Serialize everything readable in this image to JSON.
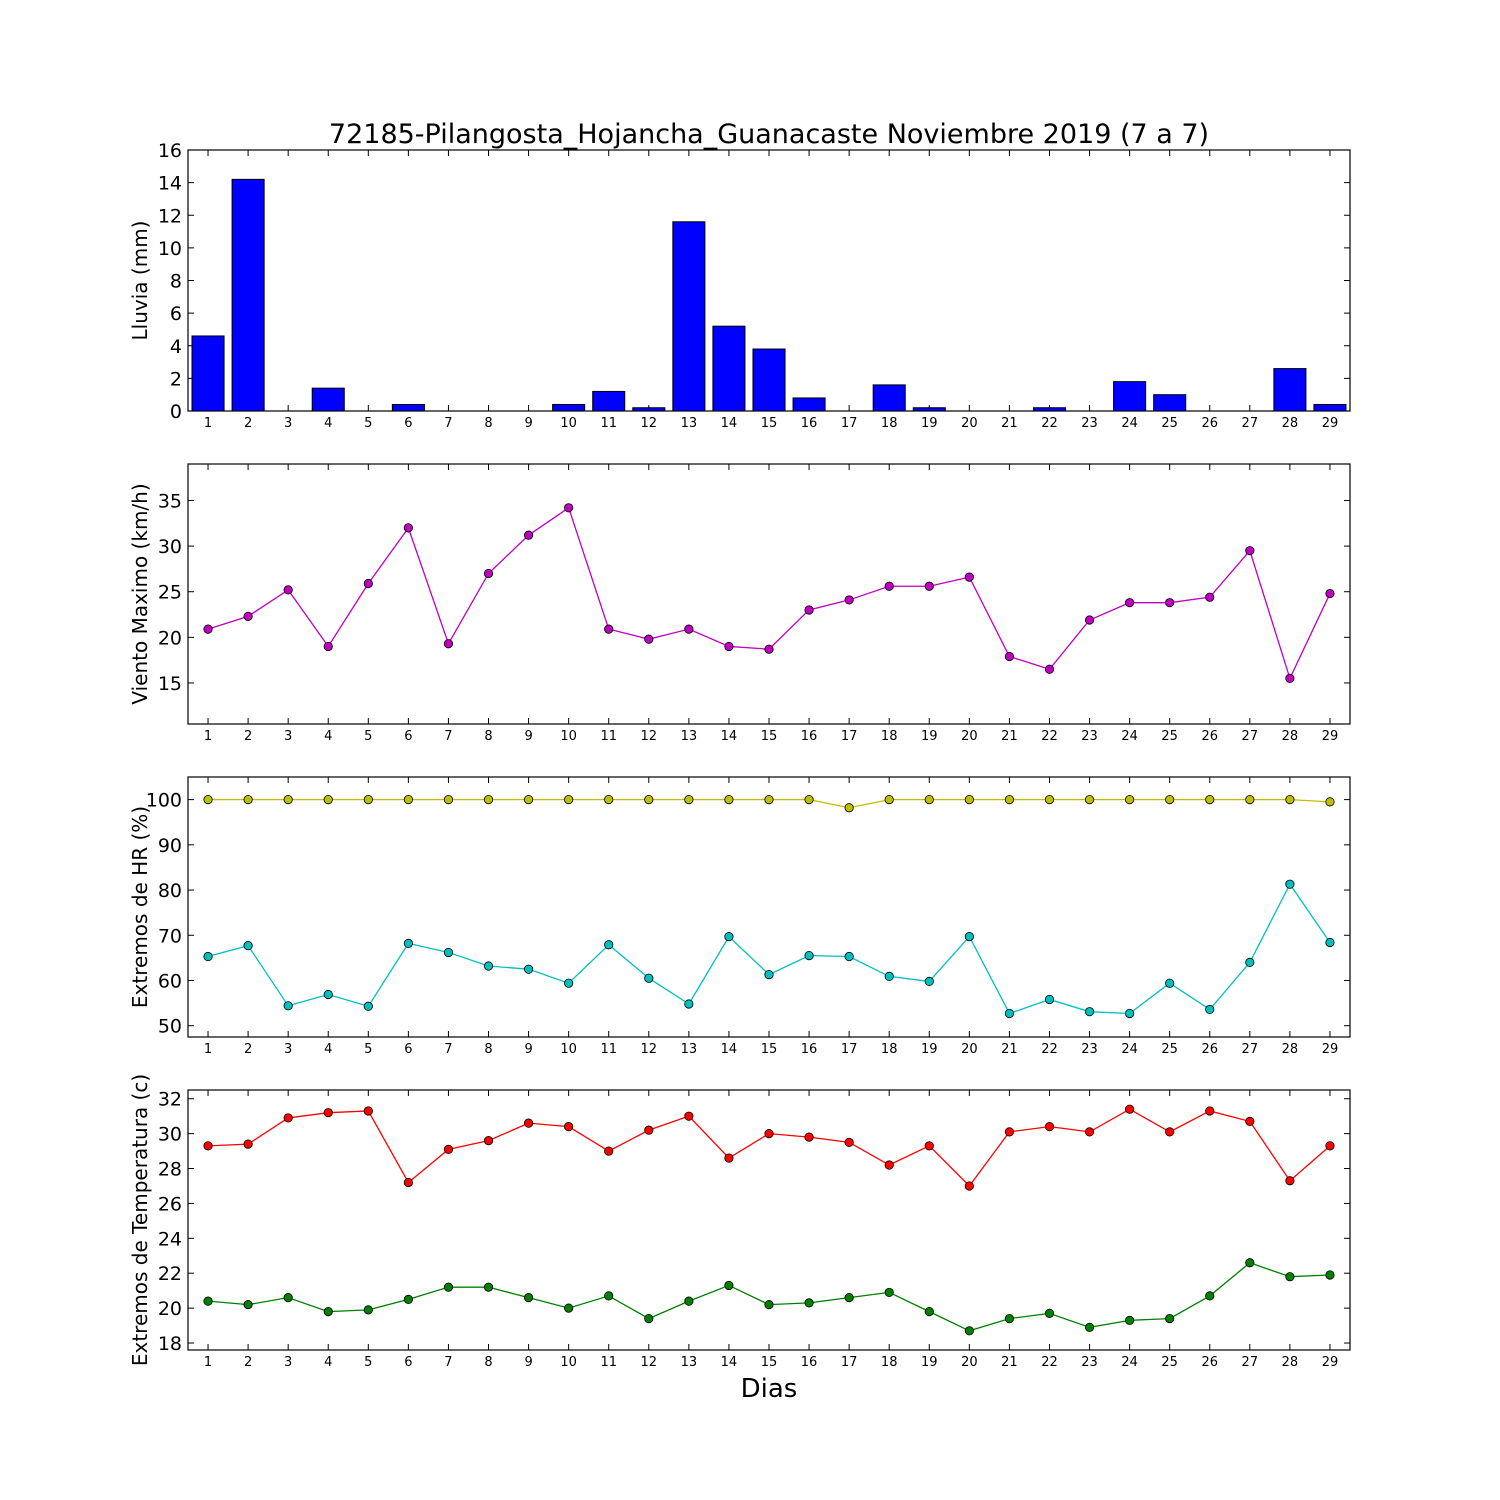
{
  "figure": {
    "title": "72185-Pilangosta_Hojancha_Guanacaste Noviembre 2019  (7 a 7)",
    "xlabel": "Dias"
  },
  "chart_data": [
    {
      "id": "lluvia",
      "type": "bar",
      "ylabel": "Lluvia (mm)",
      "ylim": [
        0,
        16
      ],
      "yticks": [
        0,
        2,
        4,
        6,
        8,
        10,
        12,
        14,
        16
      ],
      "x": [
        1,
        2,
        3,
        4,
        5,
        6,
        7,
        8,
        9,
        10,
        11,
        12,
        13,
        14,
        15,
        16,
        17,
        18,
        19,
        20,
        21,
        22,
        23,
        24,
        25,
        26,
        27,
        28,
        29
      ],
      "series": [
        {
          "color": "#0000ff",
          "values": [
            4.6,
            14.2,
            0,
            1.4,
            0,
            0.4,
            0,
            0,
            0,
            0.4,
            1.2,
            0.2,
            11.6,
            5.2,
            3.8,
            0.8,
            0,
            1.6,
            0.2,
            0,
            0,
            0.2,
            0,
            1.8,
            1.0,
            0,
            0,
            2.6,
            0.4
          ]
        }
      ]
    },
    {
      "id": "viento",
      "type": "line",
      "ylabel": "Viento Maximo (km/h)",
      "ylim": [
        10.5,
        39
      ],
      "yticks": [
        15,
        20,
        25,
        30,
        35
      ],
      "x": [
        1,
        2,
        3,
        4,
        5,
        6,
        7,
        8,
        9,
        10,
        11,
        12,
        13,
        14,
        15,
        16,
        17,
        18,
        19,
        20,
        21,
        22,
        23,
        24,
        25,
        26,
        27,
        28,
        29
      ],
      "series": [
        {
          "color": "#bf00bf",
          "values": [
            20.9,
            22.3,
            25.2,
            19.0,
            25.9,
            32.0,
            19.3,
            27.0,
            31.2,
            34.2,
            20.9,
            19.8,
            20.9,
            19.0,
            18.7,
            23.0,
            24.1,
            25.6,
            25.6,
            26.6,
            17.9,
            16.5,
            21.9,
            23.8,
            23.8,
            24.4,
            29.5,
            15.5,
            24.8
          ]
        }
      ]
    },
    {
      "id": "hr",
      "type": "line",
      "ylabel": "Extremos de HR (%)",
      "ylim": [
        47.5,
        105
      ],
      "yticks": [
        50,
        60,
        70,
        80,
        90,
        100
      ],
      "x": [
        1,
        2,
        3,
        4,
        5,
        6,
        7,
        8,
        9,
        10,
        11,
        12,
        13,
        14,
        15,
        16,
        17,
        18,
        19,
        20,
        21,
        22,
        23,
        24,
        25,
        26,
        27,
        28,
        29
      ],
      "series": [
        {
          "color": "#bfbf00",
          "values": [
            100,
            100,
            100,
            100,
            100,
            100,
            100,
            100,
            100,
            100,
            100,
            100,
            100,
            100,
            100,
            100,
            98.2,
            100,
            100,
            100,
            100,
            100,
            100,
            100,
            100,
            100,
            100,
            100,
            99.5
          ]
        },
        {
          "color": "#00bfbf",
          "values": [
            65.3,
            67.7,
            54.4,
            56.9,
            54.3,
            68.2,
            66.2,
            63.2,
            62.5,
            59.4,
            67.9,
            60.5,
            54.8,
            69.7,
            61.3,
            65.5,
            65.3,
            60.9,
            59.8,
            69.7,
            52.7,
            55.8,
            53.1,
            52.7,
            59.4,
            53.6,
            64.0,
            81.3,
            68.4
          ]
        }
      ]
    },
    {
      "id": "temperatura",
      "type": "line",
      "ylabel": "Extremos de Temperatura (c)",
      "ylim": [
        17.6,
        32.5
      ],
      "yticks": [
        18,
        20,
        22,
        24,
        26,
        28,
        30,
        32
      ],
      "x": [
        1,
        2,
        3,
        4,
        5,
        6,
        7,
        8,
        9,
        10,
        11,
        12,
        13,
        14,
        15,
        16,
        17,
        18,
        19,
        20,
        21,
        22,
        23,
        24,
        25,
        26,
        27,
        28,
        29
      ],
      "series": [
        {
          "color": "#ff0000",
          "values": [
            29.3,
            29.4,
            30.9,
            31.2,
            31.3,
            27.2,
            29.1,
            29.6,
            30.6,
            30.4,
            29.0,
            30.2,
            31.0,
            28.6,
            30.0,
            29.8,
            29.5,
            28.2,
            29.3,
            27.0,
            30.1,
            30.4,
            30.1,
            31.4,
            30.1,
            31.3,
            30.7,
            27.3,
            29.3
          ]
        },
        {
          "color": "#008000",
          "values": [
            20.4,
            20.2,
            20.6,
            19.8,
            19.9,
            20.5,
            21.2,
            21.2,
            20.6,
            20.0,
            20.7,
            19.4,
            20.4,
            21.3,
            20.2,
            20.3,
            20.6,
            20.9,
            19.8,
            18.7,
            19.4,
            19.7,
            18.9,
            19.3,
            19.4,
            20.7,
            22.6,
            21.8,
            21.9
          ]
        }
      ]
    }
  ]
}
